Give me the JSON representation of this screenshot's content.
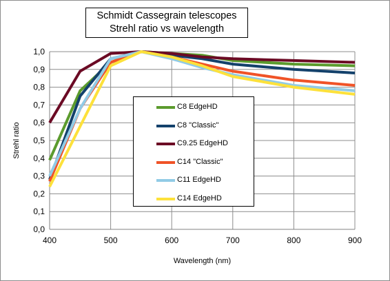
{
  "chart_data": {
    "type": "line",
    "title": [
      "Schmidt Cassegrain telescopes",
      "Strehl ratio vs wavelength"
    ],
    "xlabel": "Wavelength (nm)",
    "ylabel": "Strehl ratio",
    "x_ticks": [
      400,
      500,
      600,
      700,
      800,
      900
    ],
    "y_ticks": [
      "0,0",
      "0,1",
      "0,2",
      "0,3",
      "0,4",
      "0,5",
      "0,6",
      "0,7",
      "0,8",
      "0,9",
      "1,0"
    ],
    "xlim": [
      400,
      900
    ],
    "ylim": [
      0,
      1
    ],
    "grid": true,
    "legend_position": "center",
    "x": [
      400,
      450,
      500,
      550,
      600,
      650,
      700,
      800,
      900
    ],
    "series": [
      {
        "name": "C8 EdgeHD",
        "color": "#5b9b2d",
        "values": [
          0.39,
          0.78,
          0.94,
          1.0,
          0.99,
          0.98,
          0.95,
          0.93,
          0.92
        ]
      },
      {
        "name": "C8 \"Classic\"",
        "color": "#13416b",
        "values": [
          0.28,
          0.75,
          0.96,
          1.0,
          0.98,
          0.96,
          0.93,
          0.9,
          0.88
        ]
      },
      {
        "name": "C9.25 EdgeHD",
        "color": "#6b0a24",
        "values": [
          0.6,
          0.89,
          0.99,
          1.0,
          0.99,
          0.97,
          0.96,
          0.95,
          0.94
        ]
      },
      {
        "name": "C14 \"Classic\"",
        "color": "#f05327",
        "values": [
          0.27,
          0.68,
          0.94,
          1.0,
          0.97,
          0.93,
          0.89,
          0.84,
          0.81
        ]
      },
      {
        "name": "C11  EdgeHD",
        "color": "#91cbe6",
        "values": [
          0.3,
          0.68,
          0.96,
          1.0,
          0.96,
          0.91,
          0.87,
          0.81,
          0.78
        ]
      },
      {
        "name": "C14 EdgeHD",
        "color": "#fde13b",
        "values": [
          0.24,
          0.58,
          0.92,
          1.0,
          0.97,
          0.92,
          0.86,
          0.8,
          0.76
        ]
      }
    ]
  }
}
